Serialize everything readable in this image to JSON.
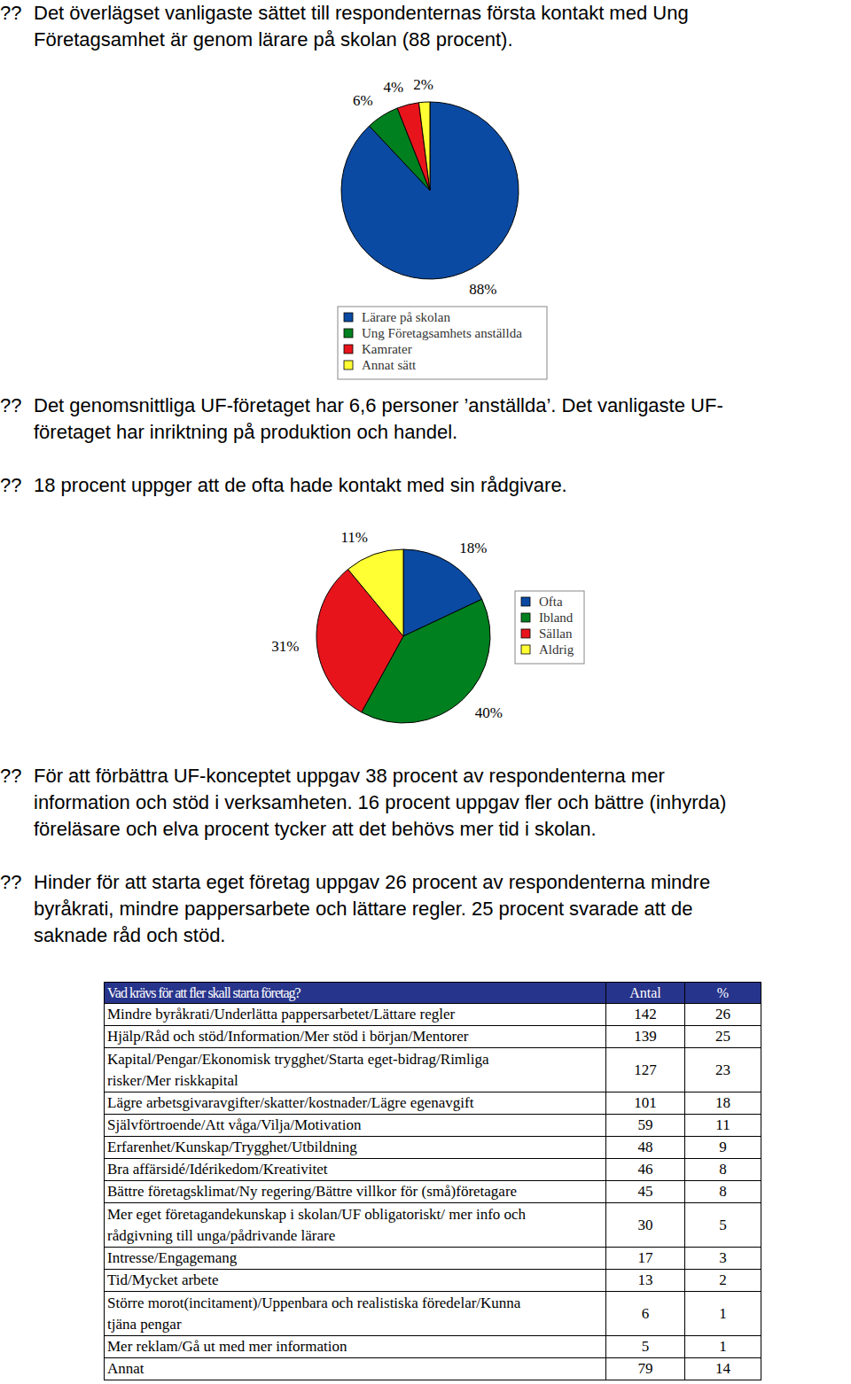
{
  "paragraphs": [
    {
      "bullet": "??",
      "lines": [
        "Det överlägset vanligaste sättet till respondenternas första kontakt med Ung",
        "Företagsamhet är genom lärare på skolan (88 procent)."
      ]
    },
    {
      "bullet": "??",
      "lines": [
        "Det genomsnittliga UF-företaget har 6,6 personer ’anställda’. Det vanligaste UF-",
        "företaget har inriktning på produktion och handel."
      ]
    },
    {
      "bullet": "??",
      "lines": [
        "18 procent uppger att de ofta hade kontakt med sin rådgivare."
      ]
    },
    {
      "bullet": "??",
      "lines": [
        "För att förbättra UF-konceptet uppgav 38 procent av respondenterna mer",
        "information och stöd i verksamheten. 16 procent uppgav fler och bättre (inhyrda)",
        "föreläsare och elva procent tycker att det behövs mer tid i skolan."
      ]
    },
    {
      "bullet": "??",
      "lines": [
        "Hinder för att starta eget företag uppgav 26 procent av respondenterna mindre",
        "byråkrati, mindre pappersarbete och lättare regler. 25 procent svarade att de",
        "saknade råd och stöd."
      ]
    }
  ],
  "chart_data": [
    {
      "type": "pie",
      "categories": [
        "Lärare på skolan",
        "Ung Företagsamhets anställda",
        "Kamrater",
        "Annat sätt"
      ],
      "values": [
        88,
        6,
        4,
        2
      ],
      "value_labels": [
        "88%",
        "6%",
        "4%",
        "2%"
      ],
      "colors": [
        "#0b4aa2",
        "#00801f",
        "#e8141c",
        "#ffff33"
      ],
      "data_labels": true,
      "legend": "bottom"
    },
    {
      "type": "pie",
      "categories": [
        "Ofta",
        "Ibland",
        "Sällan",
        "Aldrig"
      ],
      "values": [
        18,
        40,
        31,
        11
      ],
      "value_labels": [
        "18%",
        "40%",
        "31%",
        "11%"
      ],
      "colors": [
        "#0b4aa2",
        "#00801f",
        "#e8141c",
        "#ffff33"
      ],
      "data_labels": true,
      "legend": "right"
    }
  ],
  "table": {
    "header": {
      "label": "Vad krävs för att fler skall starta företag?",
      "antal": "Antal",
      "percent": "%"
    },
    "rows": [
      {
        "label": [
          "Mindre byråkrati/Underlätta pappersarbetet/Lättare regler"
        ],
        "antal": 142,
        "percent": 26
      },
      {
        "label": [
          "Hjälp/Råd och stöd/Information/Mer stöd i början/Mentorer"
        ],
        "antal": 139,
        "percent": 25
      },
      {
        "label": [
          "Kapital/Pengar/Ekonomisk trygghet/Starta eget-bidrag/Rimliga",
          "risker/Mer riskkapital"
        ],
        "antal": 127,
        "percent": 23
      },
      {
        "label": [
          "Lägre arbetsgivaravgifter/skatter/kostnader/Lägre egenavgift"
        ],
        "antal": 101,
        "percent": 18
      },
      {
        "label": [
          "Självförtroende/Att våga/Vilja/Motivation"
        ],
        "antal": 59,
        "percent": 11
      },
      {
        "label": [
          "Erfarenhet/Kunskap/Trygghet/Utbildning"
        ],
        "antal": 48,
        "percent": 9
      },
      {
        "label": [
          "Bra affärsidé/Idérikedom/Kreativitet"
        ],
        "antal": 46,
        "percent": 8
      },
      {
        "label": [
          "Bättre företagsklimat/Ny regering/Bättre villkor för (små)företagare"
        ],
        "antal": 45,
        "percent": 8
      },
      {
        "label": [
          "Mer eget företagandekunskap i skolan/UF obligatoriskt/ mer info och",
          "rådgivning till unga/pådrivande lärare"
        ],
        "antal": 30,
        "percent": 5
      },
      {
        "label": [
          "Intresse/Engagemang"
        ],
        "antal": 17,
        "percent": 3
      },
      {
        "label": [
          "Tid/Mycket arbete"
        ],
        "antal": 13,
        "percent": 2
      },
      {
        "label": [
          "Större morot(incitament)/Uppenbara och realistiska föredelar/Kunna",
          "tjäna pengar"
        ],
        "antal": 6,
        "percent": 1
      },
      {
        "label": [
          "Mer reklam/Gå ut med mer information"
        ],
        "antal": 5,
        "percent": 1
      },
      {
        "label": [
          "Annat"
        ],
        "antal": 79,
        "percent": 14
      }
    ]
  }
}
